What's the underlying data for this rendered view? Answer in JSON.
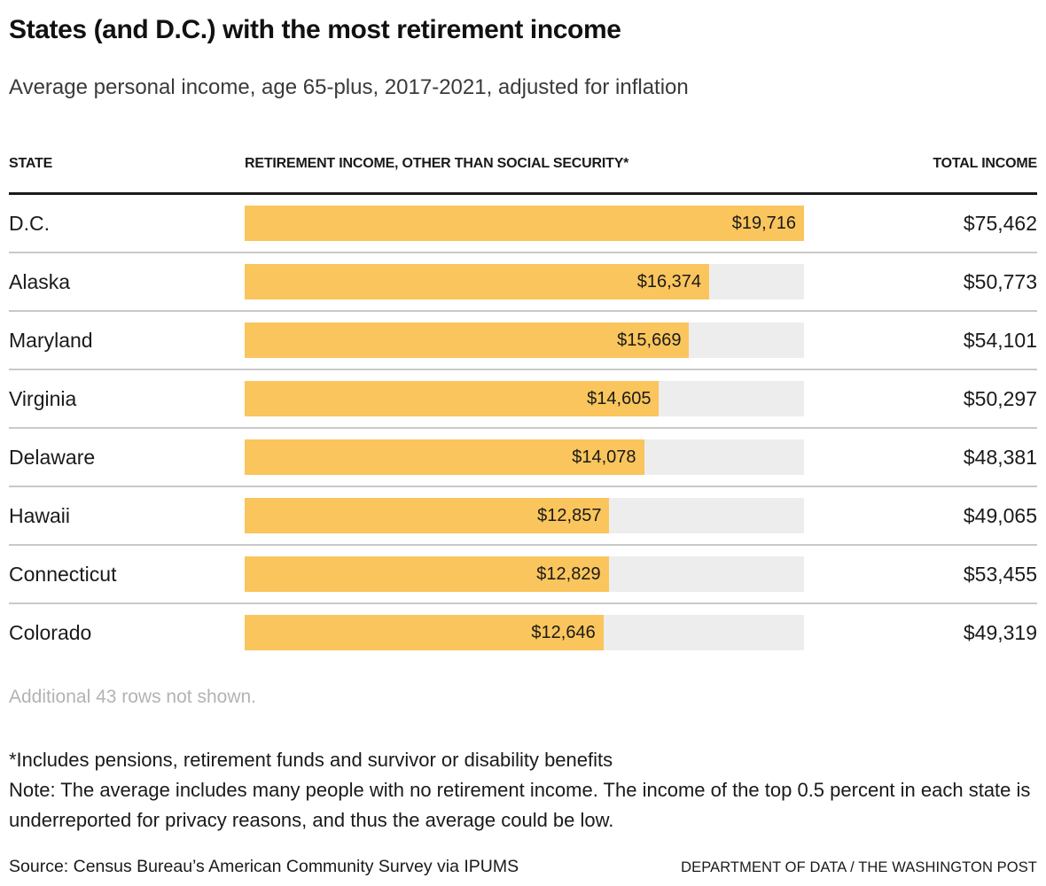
{
  "header": {
    "title": "States (and D.C.) with the most retirement income",
    "subtitle": "Average personal income, age 65-plus, 2017-2021, adjusted for inflation"
  },
  "table": {
    "columns": {
      "state": "STATE",
      "retirement": "RETIREMENT INCOME, OTHER THAN SOCIAL SECURITY*",
      "total": "TOTAL INCOME"
    }
  },
  "rows": [
    {
      "state": "D.C.",
      "value": 19716,
      "value_label": "$19,716",
      "total_label": "$75,462"
    },
    {
      "state": "Alaska",
      "value": 16374,
      "value_label": "$16,374",
      "total_label": "$50,773"
    },
    {
      "state": "Maryland",
      "value": 15669,
      "value_label": "$15,669",
      "total_label": "$54,101"
    },
    {
      "state": "Virginia",
      "value": 14605,
      "value_label": "$14,605",
      "total_label": "$50,297"
    },
    {
      "state": "Delaware",
      "value": 14078,
      "value_label": "$14,078",
      "total_label": "$48,381"
    },
    {
      "state": "Hawaii",
      "value": 12857,
      "value_label": "$12,857",
      "total_label": "$49,065"
    },
    {
      "state": "Connecticut",
      "value": 12829,
      "value_label": "$12,829",
      "total_label": "$53,455"
    },
    {
      "state": "Colorado",
      "value": 12646,
      "value_label": "$12,646",
      "total_label": "$49,319"
    }
  ],
  "chart_data": {
    "type": "bar",
    "orientation": "horizontal",
    "title": "States (and D.C.) with the most retirement income",
    "subtitle": "Average personal income, age 65-plus, 2017-2021, adjusted for inflation",
    "categories": [
      "D.C.",
      "Alaska",
      "Maryland",
      "Virginia",
      "Delaware",
      "Hawaii",
      "Connecticut",
      "Colorado"
    ],
    "series": [
      {
        "name": "Retirement income, other than Social Security",
        "values": [
          19716,
          16374,
          15669,
          14605,
          14078,
          12857,
          12829,
          12646
        ]
      },
      {
        "name": "Total income",
        "values": [
          75462,
          50773,
          54101,
          50297,
          48381,
          49065,
          53455,
          49319
        ]
      }
    ],
    "xlim": [
      0,
      19716
    ],
    "grid": false,
    "legend": "none",
    "bar_color": "#fac55c",
    "track_color": "#ededed"
  },
  "footer": {
    "more_rows": "Additional 43 rows not shown.",
    "footnote": "*Includes pensions, retirement funds and survivor or disability benefits",
    "note": "Note: The average includes many people with no retirement income. The income of the top 0.5 percent in each state is underreported for privacy reasons, and thus the average could be low.",
    "source": "Source: Census Bureau’s American Community Survey via IPUMS",
    "credit": "DEPARTMENT OF DATA / THE WASHINGTON POST"
  },
  "colors": {
    "bar": "#fac55c",
    "track": "#ededed",
    "header_rule": "#1a1a1a",
    "row_separator": "#c9c9c9",
    "muted_text": "#b3b3b3"
  }
}
